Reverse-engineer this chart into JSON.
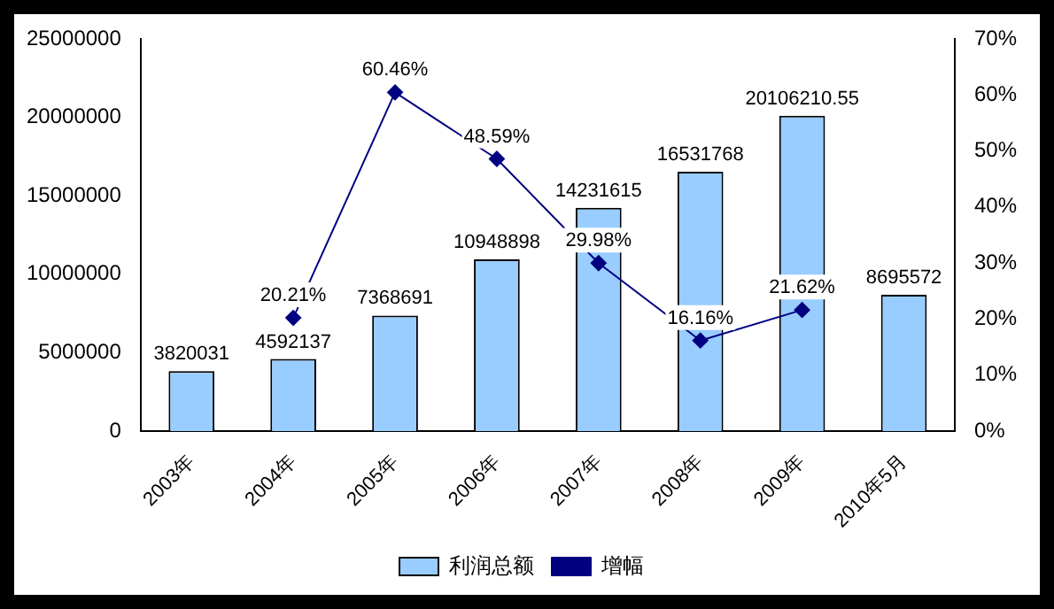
{
  "chart_data": {
    "type": "bar",
    "categories": [
      "2003年",
      "2004年",
      "2005年",
      "2006年",
      "2007年",
      "2008年",
      "2009年",
      "2010年5月"
    ],
    "series": [
      {
        "name": "利润总额",
        "color": "#99ccff",
        "values": [
          3820031,
          4592137,
          7368691,
          10948898,
          14231615,
          16531768,
          20106210.55,
          8695572
        ],
        "value_labels": [
          "3820031",
          "4592137",
          "7368691",
          "10948898",
          "14231615",
          "16531768",
          "20106210.55",
          "8695572"
        ]
      },
      {
        "name": "增幅",
        "type": "line",
        "axis": "y2",
        "color": "#000080",
        "marker": "diamond",
        "values": [
          null,
          20.21,
          60.46,
          48.59,
          29.98,
          16.16,
          21.62,
          null
        ],
        "value_labels": [
          null,
          "20.21%",
          "60.46%",
          "48.59%",
          "29.98%",
          "16.16%",
          "21.62%",
          null
        ]
      }
    ],
    "ylim": [
      0,
      25000000
    ],
    "yticks": [
      0,
      5000000,
      10000000,
      15000000,
      20000000,
      25000000
    ],
    "y2lim": [
      0,
      70
    ],
    "y2ticks": [
      {
        "value": 0,
        "label": "0%"
      },
      {
        "value": 10,
        "label": "10%"
      },
      {
        "value": 20,
        "label": "20%"
      },
      {
        "value": 30,
        "label": "30%"
      },
      {
        "value": 40,
        "label": "40%"
      },
      {
        "value": 50,
        "label": "50%"
      },
      {
        "value": 60,
        "label": "60%"
      },
      {
        "value": 70,
        "label": "70%"
      }
    ],
    "grid": false,
    "legend": "bottom"
  }
}
